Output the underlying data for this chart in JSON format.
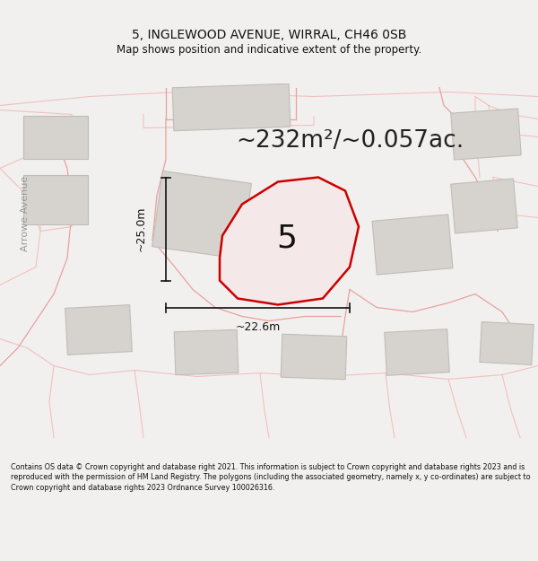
{
  "title_line1": "5, INGLEWOOD AVENUE, WIRRAL, CH46 0SB",
  "title_line2": "Map shows position and indicative extent of the property.",
  "area_text": "~232m²/~0.057ac.",
  "dim_vertical": "~25.0m",
  "dim_horizontal": "~22.6m",
  "number_label": "5",
  "street_label": "Arrowe Avenue",
  "footer_text": "Contains OS data © Crown copyright and database right 2021. This information is subject to Crown copyright and database rights 2023 and is reproduced with the permission of HM Land Registry. The polygons (including the associated geometry, namely x, y co-ordinates) are subject to Crown copyright and database rights 2023 Ordnance Survey 100026316.",
  "bg_color": "#f2f0ee",
  "map_bg": "#f2f0ee",
  "building_fill": "#d6d3ce",
  "building_edge": "#c0bdb8",
  "road_line_pink": "#e8a0a0",
  "road_line_light": "#f0c0c0",
  "plot_fill": "#f5e8e8",
  "plot_edge": "#cc0000",
  "dim_line_color": "#111111",
  "text_color": "#111111",
  "title_color": "#111111",
  "footer_color": "#111111",
  "area_color": "#222222",
  "street_label_color": "#999999"
}
